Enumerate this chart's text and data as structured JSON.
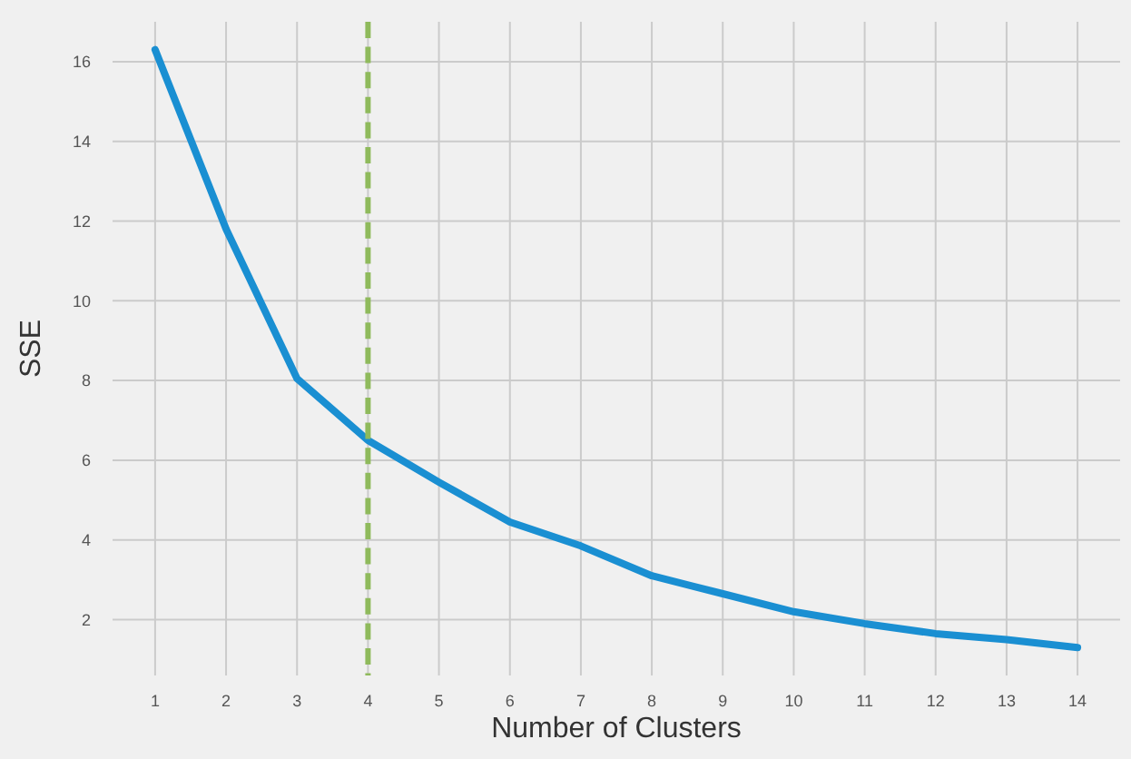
{
  "chart_data": {
    "type": "line",
    "xlabel": "Number of Clusters",
    "ylabel": "SSE",
    "x": [
      1,
      2,
      3,
      4,
      5,
      6,
      7,
      8,
      9,
      10,
      11,
      12,
      13,
      14
    ],
    "series": [
      {
        "color": "#1a8fd2",
        "values": [
          16.3,
          11.8,
          8.05,
          6.5,
          5.45,
          4.45,
          3.85,
          3.1,
          2.65,
          2.2,
          1.9,
          1.65,
          1.5,
          1.3
        ]
      }
    ],
    "xlim": [
      0.4,
      14.6
    ],
    "xticks": [
      1,
      2,
      3,
      4,
      5,
      6,
      7,
      8,
      9,
      10,
      11,
      12,
      13,
      14
    ],
    "ylim": [
      0.6,
      17
    ],
    "yticks": [
      2,
      4,
      6,
      8,
      10,
      12,
      14,
      16
    ],
    "grid": true,
    "marker": "none",
    "line_style": "solid",
    "ref_lines": [
      {
        "axis": "x",
        "value": 4,
        "color": "#8fba5c",
        "line_style": "dashed"
      }
    ]
  }
}
